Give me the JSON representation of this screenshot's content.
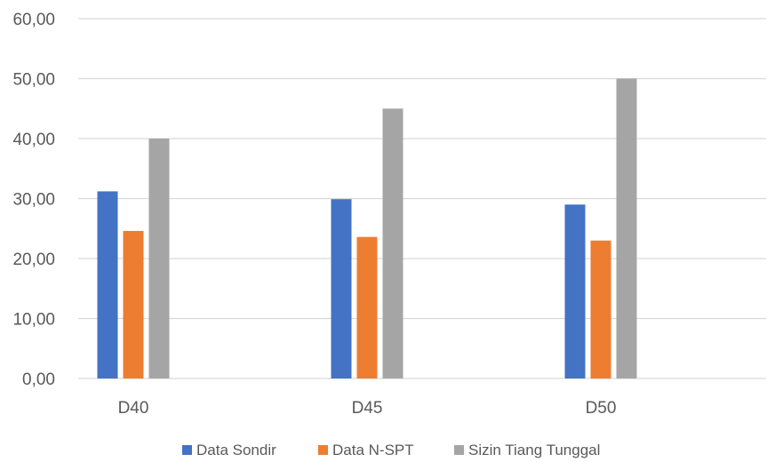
{
  "chart_data": {
    "type": "bar",
    "title": "",
    "xlabel": "",
    "ylabel": "",
    "categories": [
      "D40",
      "D45",
      "D50"
    ],
    "series": [
      {
        "name": "Data Sondir",
        "values": [
          31.2,
          29.9,
          29.0
        ],
        "color": "#4472C4"
      },
      {
        "name": "Data N-SPT",
        "values": [
          24.6,
          23.6,
          23.0
        ],
        "color": "#ED7D31"
      },
      {
        "name": "Sizin Tiang Tunggal",
        "values": [
          40.0,
          45.0,
          50.0
        ],
        "color": "#A5A5A5"
      }
    ],
    "ylim": [
      0,
      60
    ],
    "yticks": [
      0,
      10,
      20,
      30,
      40,
      50,
      60
    ],
    "ytick_labels": [
      "0,00",
      "10,00",
      "20,00",
      "30,00",
      "40,00",
      "50,00",
      "60,00"
    ],
    "grid": true,
    "legend_position": "bottom"
  },
  "colors": {
    "gridline": "#D9D9D9",
    "axis_text": "#595959"
  }
}
